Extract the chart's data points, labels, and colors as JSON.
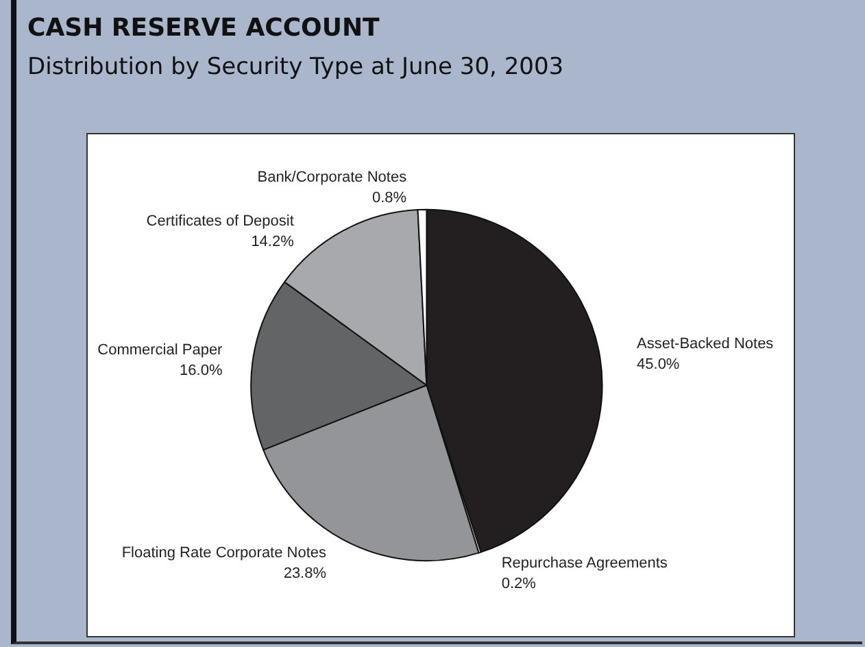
{
  "chart_data": {
    "type": "pie",
    "title": "CASH RESERVE ACCOUNT",
    "subtitle": "Distribution by Security Type at June 30, 2003",
    "categories": [
      "Asset-Backed Notes",
      "Repurchase Agreements",
      "Floating Rate Corporate Notes",
      "Commercial Paper",
      "Certificates of Deposit",
      "Bank/Corporate Notes"
    ],
    "values": [
      45.0,
      0.2,
      23.8,
      16.0,
      14.2,
      0.8
    ],
    "value_labels": [
      "45.0%",
      "0.2%",
      "23.8%",
      "16.0%",
      "14.2%",
      "0.8%"
    ],
    "colors": [
      "#231f20",
      "#ffffff",
      "#939598",
      "#636466",
      "#a7a9ac",
      "#ffffff"
    ],
    "legend": false
  }
}
